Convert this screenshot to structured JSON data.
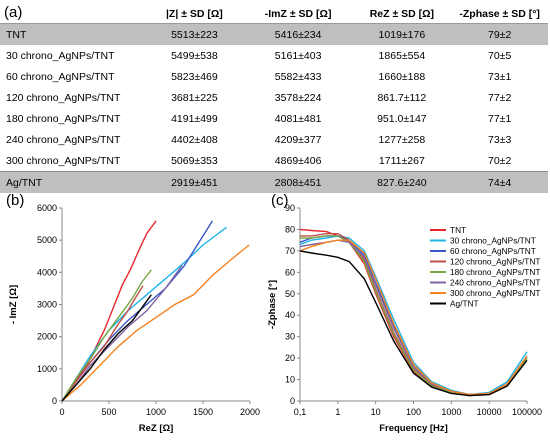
{
  "panel_labels": {
    "a": "(a)",
    "b": "(b)",
    "c": "(c)"
  },
  "table": {
    "headers": [
      "",
      "|Z| ± SD [Ω]",
      "-ImZ ± SD [Ω]",
      "ReZ ± SD [Ω]",
      "-Zphase ± SD [°]"
    ],
    "rows": [
      [
        "TNT",
        "5513±223",
        "5416±234",
        "1019±176",
        "79±2"
      ],
      [
        "30 chrono_AgNPs/TNT",
        "5499±538",
        "5161±403",
        "1865±554",
        "70±5"
      ],
      [
        "60 chrono_AgNPs/TNT",
        "5823±469",
        "5582±433",
        "1660±188",
        "73±1"
      ],
      [
        "120 chrono_AgNPs/TNT",
        "3681±225",
        "3578±224",
        "861.7±112",
        "77±2"
      ],
      [
        "180 chrono_AgNPs/TNT",
        "4191±499",
        "4081±481",
        "951.0±147",
        "77±1"
      ],
      [
        "240 chrono_AgNPs/TNT",
        "4402±408",
        "4209±377",
        "1277±258",
        "73±3"
      ],
      [
        "300 chrono_AgNPs/TNT",
        "5069±353",
        "4869±406",
        "1711±267",
        "70±2"
      ],
      [
        "Ag/TNT",
        "2919±451",
        "2808±451",
        "827.6±240",
        "74±4"
      ]
    ]
  },
  "chart_data": [
    {
      "type": "line",
      "xlabel": "ReZ [Ω]",
      "ylabel": "- ImZ [Ω]",
      "xlim": [
        0,
        2000
      ],
      "ylim": [
        0,
        6000
      ],
      "xticks": [
        0,
        500,
        1000,
        1500,
        2000
      ],
      "yticks": [
        0,
        1000,
        2000,
        3000,
        4000,
        5000,
        6000
      ],
      "grid": false,
      "series": [
        {
          "color": "#e8262b",
          "x": [
            0,
            120,
            280,
            450,
            560,
            640,
            730,
            820,
            900,
            1000
          ],
          "y": [
            0,
            500,
            1200,
            2200,
            3000,
            3600,
            4100,
            4700,
            5200,
            5600
          ]
        },
        {
          "color": "#1fb4e8",
          "x": [
            0,
            150,
            300,
            500,
            700,
            900,
            1100,
            1300,
            1500,
            1750
          ],
          "y": [
            0,
            700,
            1400,
            2200,
            2800,
            3300,
            3800,
            4300,
            4850,
            5400
          ]
        },
        {
          "color": "#3a55c8",
          "x": [
            0,
            150,
            300,
            500,
            700,
            900,
            1100,
            1300,
            1450,
            1600
          ],
          "y": [
            0,
            600,
            1200,
            1900,
            2500,
            3000,
            3500,
            4200,
            4900,
            5600
          ]
        },
        {
          "color": "#c0504d",
          "x": [
            0,
            150,
            300,
            450,
            600,
            700,
            780,
            862
          ],
          "y": [
            0,
            600,
            1200,
            1700,
            2400,
            2800,
            3200,
            3580
          ]
        },
        {
          "color": "#77a845",
          "x": [
            0,
            150,
            300,
            450,
            600,
            750,
            850,
            951
          ],
          "y": [
            0,
            700,
            1300,
            2000,
            2600,
            3200,
            3700,
            4080
          ]
        },
        {
          "color": "#8064a2",
          "x": [
            0,
            150,
            300,
            500,
            700,
            900,
            1100,
            1277
          ],
          "y": [
            0,
            500,
            1100,
            1700,
            2300,
            2800,
            3500,
            4210
          ]
        },
        {
          "color": "#f4821f",
          "x": [
            0,
            200,
            400,
            600,
            800,
            1000,
            1200,
            1400,
            1600,
            1800,
            1990
          ],
          "y": [
            0,
            500,
            1100,
            1700,
            2200,
            2600,
            3000,
            3300,
            3900,
            4400,
            4850
          ]
        },
        {
          "color": "#000000",
          "x": [
            0,
            150,
            300,
            450,
            600,
            750,
            828,
            950
          ],
          "y": [
            0,
            500,
            1000,
            1600,
            2100,
            2500,
            2810,
            3300
          ]
        }
      ]
    },
    {
      "type": "line",
      "xlabel": "Frequency [Hz]",
      "ylabel": "-Zphase [°]",
      "xscale": "log",
      "xlim": [
        0.1,
        100000
      ],
      "ylim": [
        0,
        90
      ],
      "xticks": [
        0.1,
        1,
        10,
        100,
        1000,
        10000,
        100000
      ],
      "xticklabels": [
        "0,1",
        "1",
        "10",
        "100",
        "1000",
        "10000",
        "100000"
      ],
      "yticks": [
        0,
        10,
        20,
        30,
        40,
        50,
        60,
        70,
        80,
        90
      ],
      "grid": false,
      "legend": "right",
      "series": [
        {
          "name": "TNT",
          "color": "#e8262b",
          "x": [
            0.1,
            0.2,
            0.5,
            1,
            2,
            5,
            10,
            30,
            100,
            300,
            1000,
            3000,
            10000,
            30000,
            100000
          ],
          "y": [
            80,
            79.5,
            79,
            77,
            74,
            64,
            50,
            30,
            14,
            7,
            4,
            2.5,
            3,
            7,
            20
          ]
        },
        {
          "name": "30 chrono_AgNPs/TNT",
          "color": "#1fb4e8",
          "x": [
            0.1,
            0.2,
            0.5,
            1,
            2,
            5,
            10,
            30,
            100,
            300,
            1000,
            3000,
            10000,
            30000,
            100000
          ],
          "y": [
            73,
            75,
            76,
            77,
            76,
            70,
            58,
            38,
            18,
            9,
            5,
            3,
            4,
            9,
            23
          ]
        },
        {
          "name": "60 chrono_AgNPs/TNT",
          "color": "#3a55c8",
          "x": [
            0.1,
            0.2,
            0.5,
            1,
            2,
            5,
            10,
            30,
            100,
            300,
            1000,
            3000,
            10000,
            30000,
            100000
          ],
          "y": [
            74,
            76,
            77,
            77,
            75,
            68,
            55,
            35,
            16,
            8,
            4.5,
            3,
            3.5,
            8,
            21
          ]
        },
        {
          "name": "120 chrono_AgNPs/TNT",
          "color": "#c0504d",
          "x": [
            0.1,
            0.2,
            0.5,
            1,
            2,
            5,
            10,
            30,
            100,
            300,
            1000,
            3000,
            10000,
            30000,
            100000
          ],
          "y": [
            77,
            77,
            78,
            78,
            75,
            66,
            52,
            32,
            15,
            7.5,
            4,
            2.5,
            3,
            7,
            20
          ]
        },
        {
          "name": "180 chrono_AgNPs/TNT",
          "color": "#77a845",
          "x": [
            0.1,
            0.2,
            0.5,
            1,
            2,
            5,
            10,
            30,
            100,
            300,
            1000,
            3000,
            10000,
            30000,
            100000
          ],
          "y": [
            76,
            76,
            77,
            77,
            74,
            65,
            51,
            31,
            14.5,
            7,
            4,
            2.5,
            3,
            7,
            20
          ]
        },
        {
          "name": "240 chrono_AgNPs/TNT",
          "color": "#8064a2",
          "x": [
            0.1,
            0.2,
            0.5,
            1,
            2,
            5,
            10,
            30,
            100,
            300,
            1000,
            3000,
            10000,
            30000,
            100000
          ],
          "y": [
            72,
            73,
            74,
            75,
            74,
            67,
            54,
            34,
            16,
            8,
            4.5,
            3,
            3.5,
            8,
            21
          ]
        },
        {
          "name": "300 chrono_AgNPs/TNT",
          "color": "#f4821f",
          "x": [
            0.1,
            0.2,
            0.5,
            1,
            2,
            5,
            10,
            30,
            100,
            300,
            1000,
            3000,
            10000,
            30000,
            100000
          ],
          "y": [
            70,
            72,
            74,
            75,
            75,
            69,
            57,
            36,
            17,
            8.5,
            4.5,
            3,
            3.5,
            8,
            21
          ]
        },
        {
          "name": "Ag/TNT",
          "color": "#000000",
          "x": [
            0.1,
            0.2,
            0.5,
            1,
            2,
            5,
            10,
            30,
            100,
            300,
            1000,
            3000,
            10000,
            30000,
            100000
          ],
          "y": [
            70,
            69,
            68,
            67,
            65,
            57,
            46,
            28,
            13,
            6.5,
            3.5,
            2.5,
            3,
            7,
            19
          ]
        }
      ]
    }
  ]
}
